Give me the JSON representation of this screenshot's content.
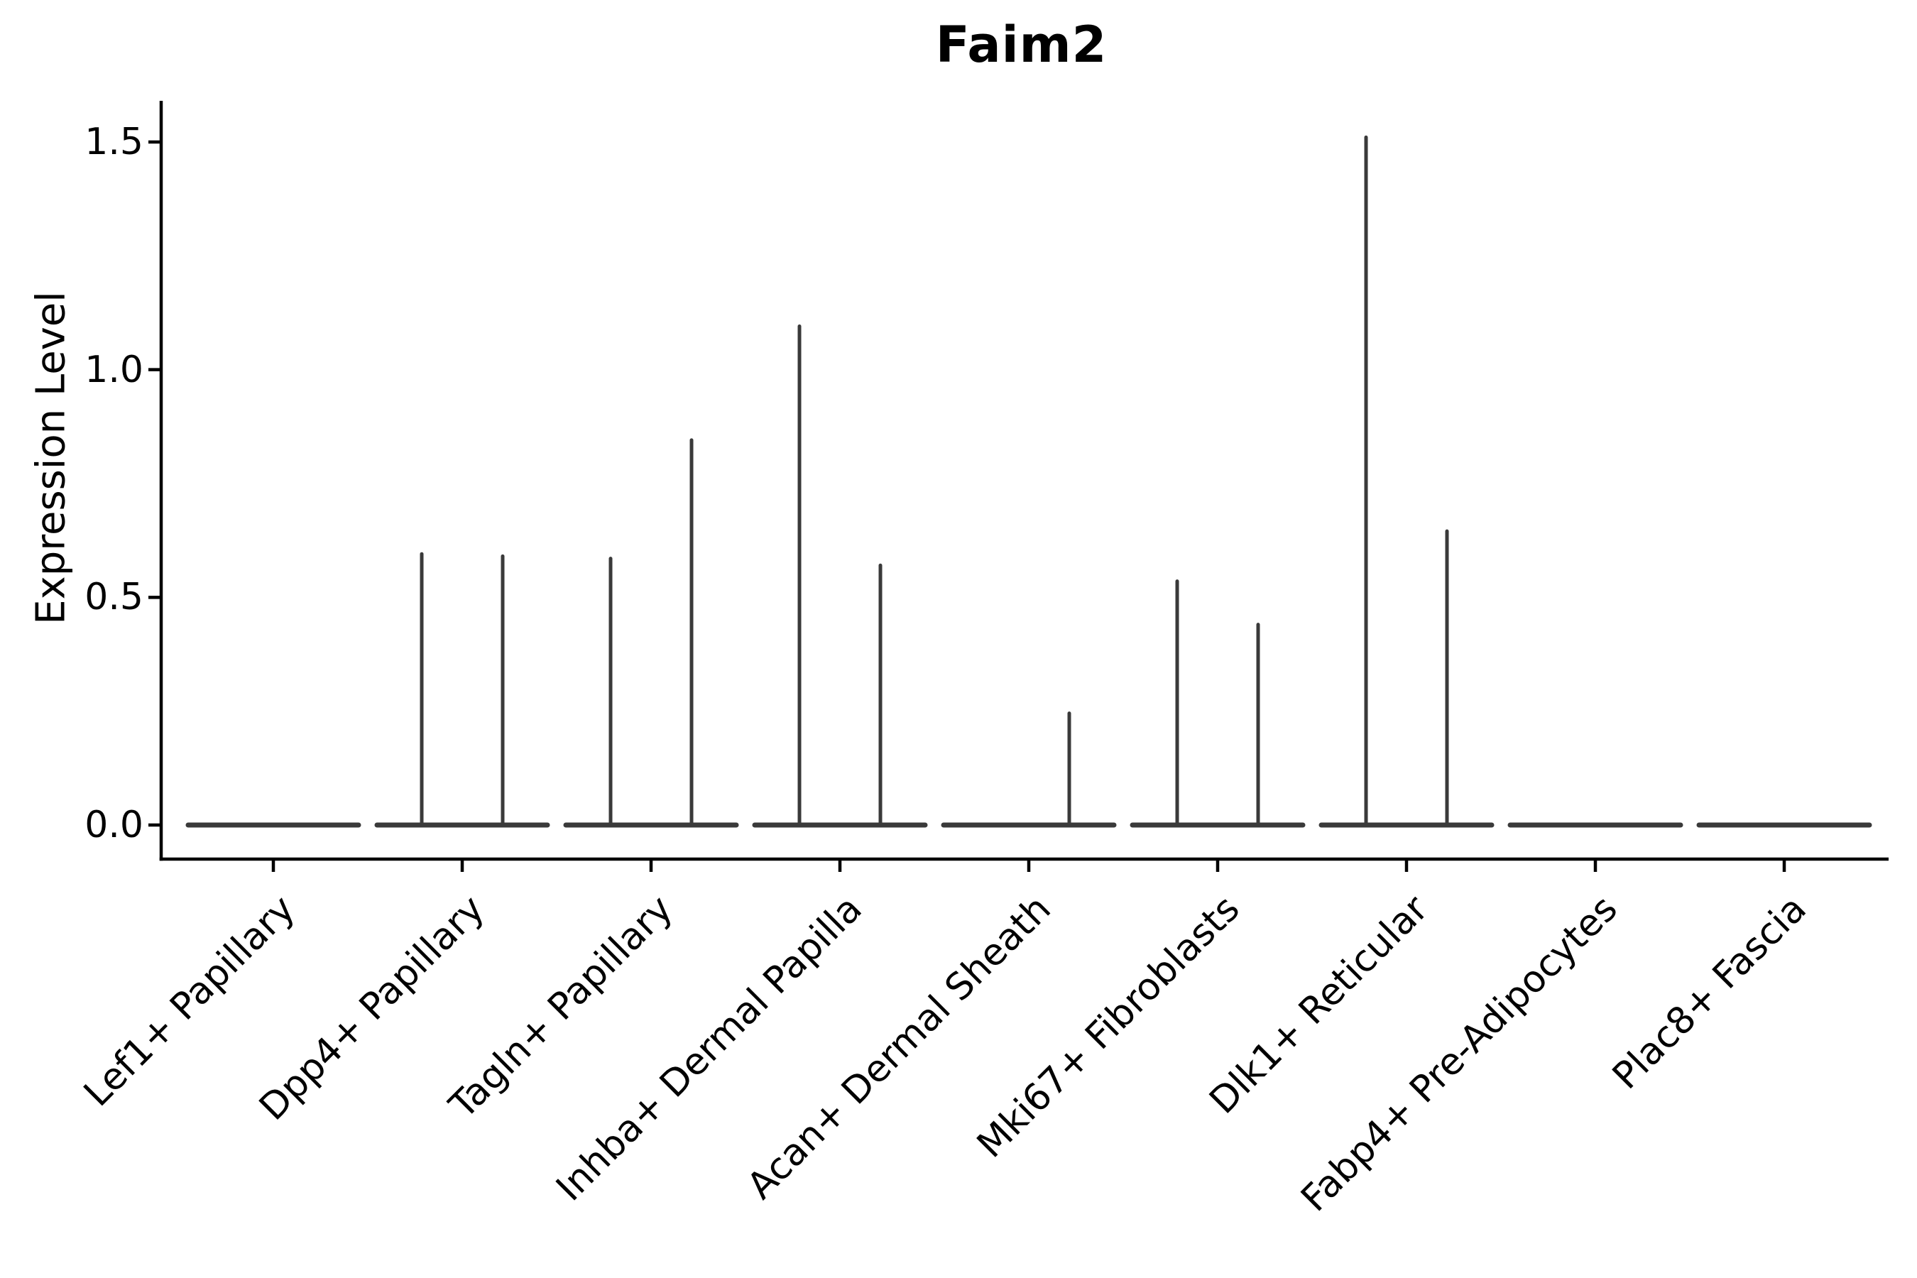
{
  "page": {
    "background": "#ffffff"
  },
  "title": "Faim2",
  "y_axis": {
    "label": "Expression Level",
    "tick_labels": [
      "0.0",
      "0.5",
      "1.0",
      "1.5"
    ]
  },
  "chart_data": {
    "type": "violin",
    "title": "Faim2",
    "xlabel": "",
    "ylabel": "Expression Level",
    "ylim": [
      -0.075,
      1.59
    ],
    "ytick_values": [
      0.0,
      0.5,
      1.0,
      1.5
    ],
    "ytick_labels": [
      "0.0",
      "0.5",
      "1.0",
      "1.5"
    ],
    "grid": false,
    "legend": false,
    "x_tick_rotation": 45,
    "categories": [
      "Lef1+ Papillary",
      "Dpp4+ Papillary",
      "Tagln+ Papillary",
      "Inhba+ Dermal Papilla",
      "Acan+ Dermal Sheath",
      "Mki67+ Fibroblasts",
      "Dlk1+ Reticular",
      "Fabp4+ Pre-Adipocytes",
      "Plac8+ Fascia"
    ],
    "violins": [
      {
        "category": "Lef1+ Papillary",
        "base_value": 0,
        "spikes": []
      },
      {
        "category": "Dpp4+ Papillary",
        "base_value": 0,
        "spikes": [
          {
            "side": "left",
            "peak": 0.6
          },
          {
            "side": "right",
            "peak": 0.595
          }
        ]
      },
      {
        "category": "Tagln+ Papillary",
        "base_value": 0,
        "spikes": [
          {
            "side": "left",
            "peak": 0.59
          },
          {
            "side": "right",
            "peak": 0.85
          }
        ]
      },
      {
        "category": "Inhba+ Dermal Papilla",
        "base_value": 0,
        "spikes": [
          {
            "side": "left",
            "peak": 1.1
          },
          {
            "side": "right",
            "peak": 0.575
          }
        ]
      },
      {
        "category": "Acan+ Dermal Sheath",
        "base_value": 0,
        "spikes": [
          {
            "side": "right",
            "peak": 0.25
          }
        ]
      },
      {
        "category": "Mki67+ Fibroblasts",
        "base_value": 0,
        "spikes": [
          {
            "side": "left",
            "peak": 0.54
          },
          {
            "side": "right",
            "peak": 0.445
          }
        ]
      },
      {
        "category": "Dlk1+ Reticular",
        "base_value": 0,
        "spikes": [
          {
            "side": "left",
            "peak": 1.515
          },
          {
            "side": "right",
            "peak": 0.65
          }
        ]
      },
      {
        "category": "Fabp4+ Pre-Adipocytes",
        "base_value": 0,
        "spikes": []
      },
      {
        "category": "Plac8+ Fascia",
        "base_value": 0,
        "spikes": []
      }
    ],
    "colors": {
      "violin_stroke": "#3a3a3a",
      "axis": "#000000",
      "text": "#000000",
      "background": "#ffffff"
    }
  }
}
